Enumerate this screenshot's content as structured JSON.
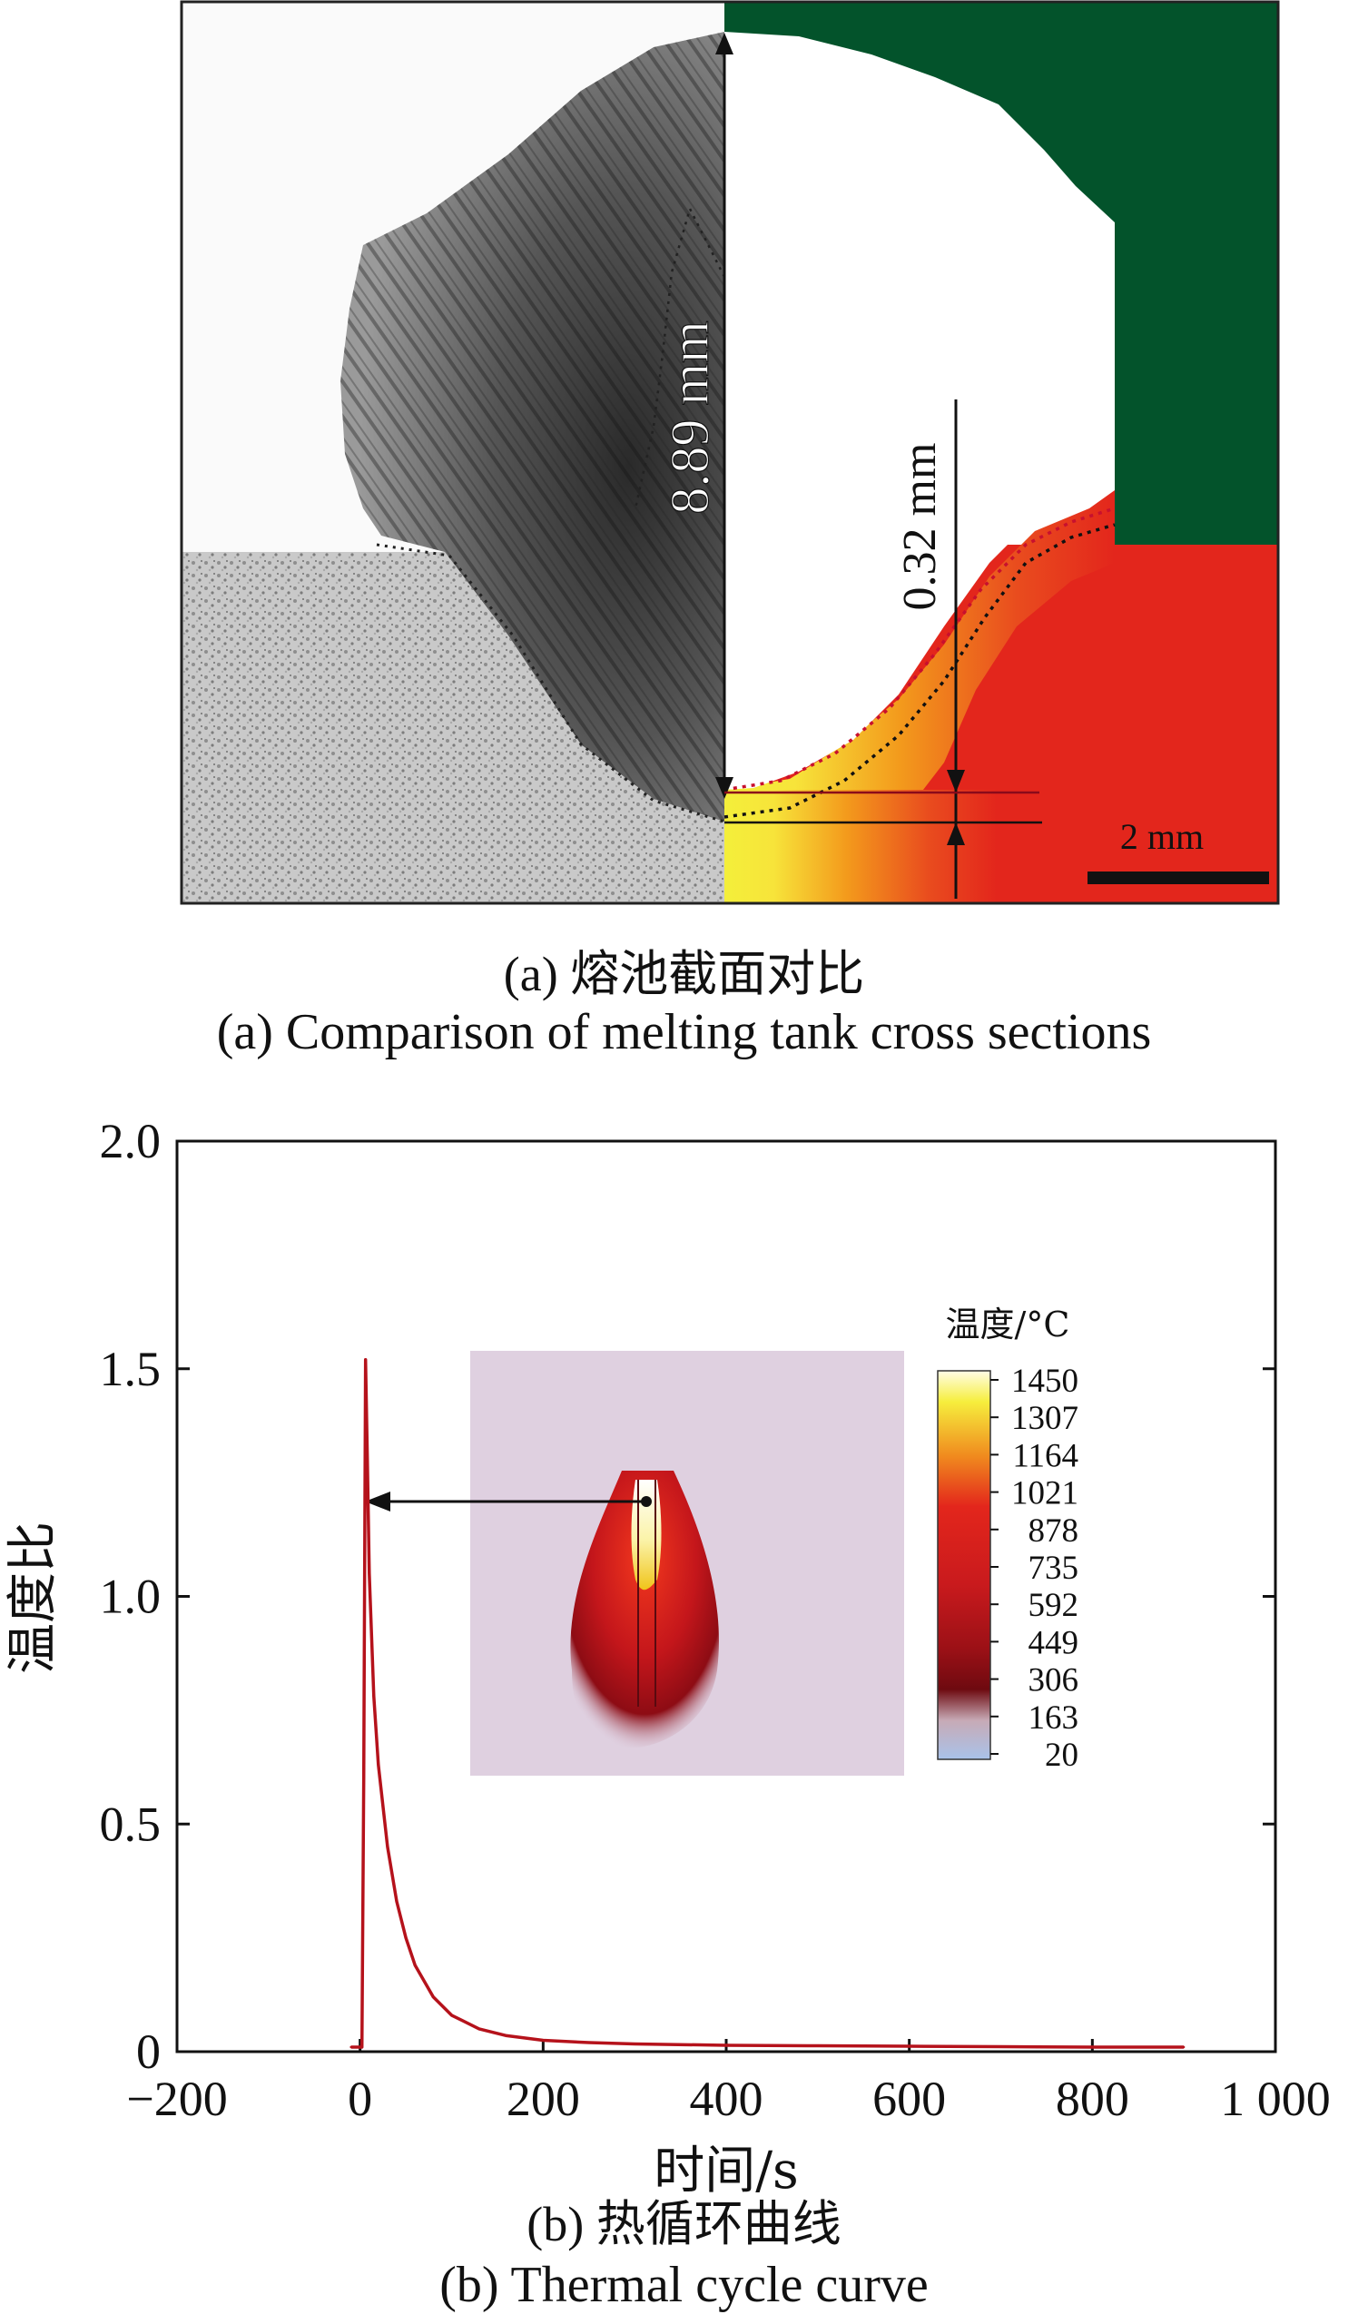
{
  "panel_a": {
    "dimension_total": "8.89 mm",
    "dimension_gap": "0.32 mm",
    "scale_bar": "2 mm",
    "caption_zh": "(a) 熔池截面对比",
    "caption_en": "(a) Comparison of melting tank cross sections",
    "colors": {
      "green": "#03532b",
      "red": "#e3261c",
      "yellow": "#f4ef3a",
      "orange": "#f39a1c"
    }
  },
  "panel_b": {
    "caption_zh": "(b) 热循环曲线",
    "caption_en": "(b) Thermal cycle curve",
    "colorbar": {
      "title": "温度/°C",
      "ticks": [
        "1450",
        "1307",
        "1164",
        "1021",
        "878",
        "735",
        "592",
        "449",
        "306",
        "163",
        "20"
      ]
    }
  },
  "chart_data": {
    "type": "line",
    "xlabel": "时间/s",
    "ylabel": "温度比",
    "xlim": [
      -200,
      1000
    ],
    "ylim": [
      0,
      2.0
    ],
    "x_ticks": [
      -200,
      0,
      200,
      400,
      600,
      800,
      1000
    ],
    "x_tick_labels": [
      "−200",
      "0",
      "200",
      "400",
      "600",
      "800",
      "1 000"
    ],
    "y_ticks": [
      0,
      0.5,
      1.0,
      1.5,
      2.0
    ],
    "y_tick_labels": [
      "0",
      "0.5",
      "1.0",
      "1.5",
      "2.0"
    ],
    "grid": false,
    "series": [
      {
        "color": "#b5121b",
        "x": [
          -10,
          2,
          4,
          6,
          8,
          10,
          15,
          20,
          30,
          40,
          50,
          60,
          80,
          100,
          130,
          160,
          200,
          250,
          300,
          400,
          500,
          600,
          700,
          800,
          900
        ],
        "y": [
          0.01,
          0.01,
          0.6,
          1.52,
          1.3,
          1.05,
          0.78,
          0.63,
          0.45,
          0.33,
          0.25,
          0.19,
          0.12,
          0.08,
          0.05,
          0.035,
          0.025,
          0.02,
          0.017,
          0.014,
          0.013,
          0.012,
          0.011,
          0.01,
          0.01
        ]
      }
    ]
  }
}
